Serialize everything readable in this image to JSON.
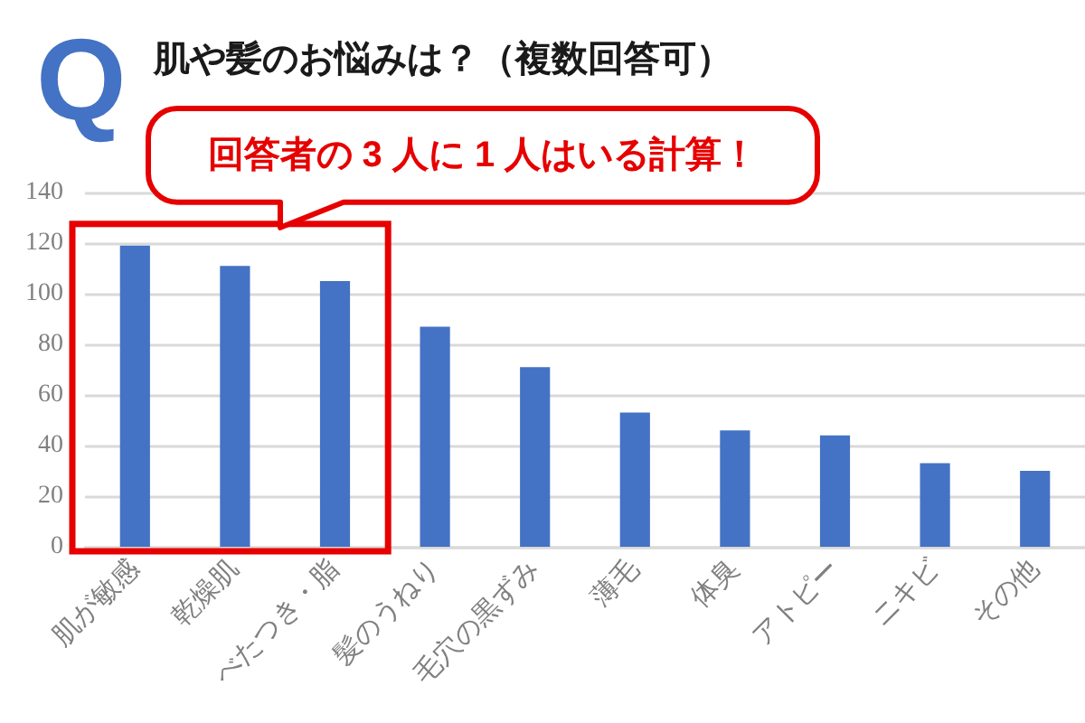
{
  "chart_data": {
    "type": "bar",
    "title": "肌や髪のお悩みは？（複数回答可）",
    "annotations": [
      "Q",
      "回答者の 3 人に 1 人はいる計算！"
    ],
    "categories": [
      "肌が敏感",
      "乾燥肌",
      "べたつき・脂",
      "髪のうねり",
      "毛穴の黒ずみ",
      "薄毛",
      "体臭",
      "アトピー",
      "ニキビ",
      "その他"
    ],
    "values": [
      119,
      111,
      105,
      87,
      71,
      53,
      46,
      44,
      33,
      30
    ],
    "color": "#4472c4",
    "ylim": [
      0,
      140
    ],
    "yticks": [
      0,
      20,
      40,
      60,
      80,
      100,
      120,
      140
    ],
    "grid": "y"
  }
}
